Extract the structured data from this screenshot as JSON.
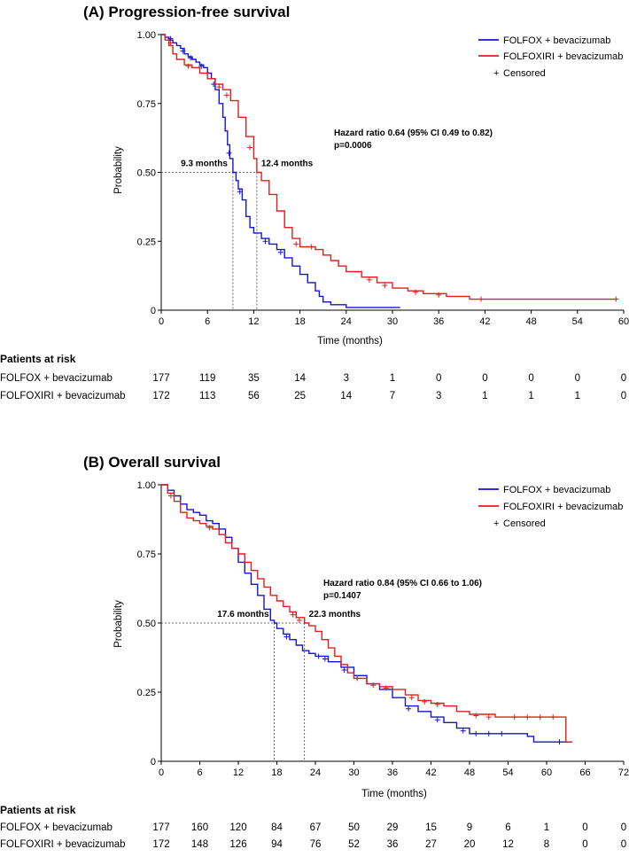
{
  "colors": {
    "folfox": "#1414d2",
    "folfoxiri": "#e01e1e",
    "axis": "#000000",
    "guide": "#444444"
  },
  "chart_data": [
    {
      "type": "line",
      "title": "(A) Progression-free survival",
      "xlabel": "Time (months)",
      "ylabel": "Probability",
      "xlim": [
        0,
        60
      ],
      "ylim": [
        0,
        1
      ],
      "xticks": [
        0,
        6,
        12,
        18,
        24,
        30,
        36,
        42,
        48,
        54,
        60
      ],
      "yticks": [
        "0",
        "0.25",
        "0.50",
        "0.75",
        "1.00"
      ],
      "legend": {
        "position": "top-right",
        "entries": [
          "FOLFOX + bevacizumab",
          "FOLFOXIRI + bevacizumab"
        ],
        "censored_label": "Censored"
      },
      "annotation": {
        "line1": "Hazard ratio 0.64 (95% CI 0.49 to 0.82)",
        "line2": "p=0.0006"
      },
      "medians": [
        {
          "label": "9.3 months",
          "x": 9.3,
          "series": "folfox"
        },
        {
          "label": "12.4 months",
          "x": 12.4,
          "series": "folfoxiri"
        }
      ],
      "series": [
        {
          "name": "FOLFOX + bevacizumab",
          "key": "folfox",
          "points": [
            [
              0,
              1
            ],
            [
              0.5,
              0.99
            ],
            [
              1,
              0.98
            ],
            [
              1.5,
              0.97
            ],
            [
              2,
              0.96
            ],
            [
              2.5,
              0.95
            ],
            [
              3,
              0.93
            ],
            [
              3.5,
              0.92
            ],
            [
              4,
              0.91
            ],
            [
              4.5,
              0.9
            ],
            [
              5,
              0.89
            ],
            [
              5.5,
              0.88
            ],
            [
              6,
              0.86
            ],
            [
              6.5,
              0.84
            ],
            [
              7,
              0.8
            ],
            [
              7.5,
              0.75
            ],
            [
              8,
              0.7
            ],
            [
              8.3,
              0.65
            ],
            [
              8.6,
              0.6
            ],
            [
              8.9,
              0.55
            ],
            [
              9.3,
              0.5
            ],
            [
              9.7,
              0.47
            ],
            [
              10,
              0.44
            ],
            [
              10.5,
              0.4
            ],
            [
              11,
              0.34
            ],
            [
              11.5,
              0.3
            ],
            [
              12,
              0.28
            ],
            [
              13,
              0.26
            ],
            [
              14,
              0.24
            ],
            [
              15,
              0.22
            ],
            [
              16,
              0.19
            ],
            [
              17,
              0.16
            ],
            [
              18,
              0.13
            ],
            [
              19,
              0.1
            ],
            [
              20,
              0.07
            ],
            [
              20.5,
              0.05
            ],
            [
              21,
              0.03
            ],
            [
              22,
              0.02
            ],
            [
              24,
              0.01
            ],
            [
              31,
              0.01
            ]
          ],
          "censor": [
            [
              1.2,
              0.985
            ],
            [
              2.8,
              0.94
            ],
            [
              3.8,
              0.915
            ],
            [
              5.2,
              0.885
            ],
            [
              6.8,
              0.82
            ],
            [
              8.8,
              0.57
            ],
            [
              10.2,
              0.43
            ],
            [
              13.5,
              0.25
            ],
            [
              15.5,
              0.21
            ]
          ]
        },
        {
          "name": "FOLFOXIRI + bevacizumab",
          "key": "folfoxiri",
          "points": [
            [
              0,
              1
            ],
            [
              0.5,
              0.98
            ],
            [
              1,
              0.96
            ],
            [
              1.5,
              0.93
            ],
            [
              2,
              0.91
            ],
            [
              3,
              0.89
            ],
            [
              4,
              0.88
            ],
            [
              5,
              0.86
            ],
            [
              6,
              0.84
            ],
            [
              7,
              0.82
            ],
            [
              8,
              0.8
            ],
            [
              9,
              0.76
            ],
            [
              10,
              0.7
            ],
            [
              11,
              0.63
            ],
            [
              12,
              0.55
            ],
            [
              12.4,
              0.5
            ],
            [
              13,
              0.47
            ],
            [
              14,
              0.42
            ],
            [
              15,
              0.36
            ],
            [
              16,
              0.3
            ],
            [
              17,
              0.26
            ],
            [
              18,
              0.23
            ],
            [
              19,
              0.23
            ],
            [
              20,
              0.22
            ],
            [
              21,
              0.2
            ],
            [
              22,
              0.18
            ],
            [
              23,
              0.16
            ],
            [
              24,
              0.14
            ],
            [
              26,
              0.12
            ],
            [
              28,
              0.1
            ],
            [
              30,
              0.08
            ],
            [
              32,
              0.07
            ],
            [
              34,
              0.06
            ],
            [
              37,
              0.05
            ],
            [
              40,
              0.04
            ],
            [
              59,
              0.04
            ]
          ],
          "censor": [
            [
              1.2,
              0.97
            ],
            [
              3.5,
              0.885
            ],
            [
              7.5,
              0.81
            ],
            [
              8.5,
              0.78
            ],
            [
              11.5,
              0.59
            ],
            [
              17.5,
              0.24
            ],
            [
              19.5,
              0.23
            ],
            [
              27,
              0.11
            ],
            [
              29,
              0.09
            ],
            [
              33,
              0.065
            ],
            [
              36,
              0.055
            ],
            [
              41.5,
              0.04
            ],
            [
              59,
              0.04
            ]
          ]
        }
      ],
      "risk_table": {
        "heading": "Patients at risk",
        "rows": [
          {
            "label": "FOLFOX + bevacizumab",
            "counts": [
              "177",
              "119",
              "35",
              "14",
              "3",
              "1",
              "0",
              "0",
              "0",
              "0",
              "0"
            ]
          },
          {
            "label": "FOLFOXIRI + bevacizumab",
            "counts": [
              "172",
              "113",
              "56",
              "25",
              "14",
              "7",
              "3",
              "1",
              "1",
              "1",
              "0"
            ]
          }
        ]
      }
    },
    {
      "type": "line",
      "title": "(B) Overall survival",
      "xlabel": "Time (months)",
      "ylabel": "Probability",
      "xlim": [
        0,
        72
      ],
      "ylim": [
        0,
        1
      ],
      "xticks": [
        0,
        6,
        12,
        18,
        24,
        30,
        36,
        42,
        48,
        54,
        60,
        66,
        72
      ],
      "yticks": [
        "0",
        "0.25",
        "0.50",
        "0.75",
        "1.00"
      ],
      "legend": {
        "position": "top-right",
        "entries": [
          "FOLFOX + bevacizumab",
          "FOLFOXIRI + bevacizumab"
        ],
        "censored_label": "Censored"
      },
      "annotation": {
        "line1": "Hazard ratio 0.84 (95% CI 0.66 to 1.06)",
        "line2": "p=0.1407"
      },
      "medians": [
        {
          "label": "17.6 months",
          "x": 17.6,
          "series": "folfox"
        },
        {
          "label": "22.3 months",
          "x": 22.3,
          "series": "folfoxiri"
        }
      ],
      "series": [
        {
          "name": "FOLFOX + bevacizumab",
          "key": "folfox",
          "points": [
            [
              0,
              1
            ],
            [
              1,
              0.98
            ],
            [
              2,
              0.96
            ],
            [
              3,
              0.93
            ],
            [
              4,
              0.91
            ],
            [
              5,
              0.9
            ],
            [
              6,
              0.89
            ],
            [
              7,
              0.87
            ],
            [
              8,
              0.86
            ],
            [
              9,
              0.84
            ],
            [
              10,
              0.81
            ],
            [
              11,
              0.77
            ],
            [
              12,
              0.72
            ],
            [
              13,
              0.68
            ],
            [
              14,
              0.64
            ],
            [
              15,
              0.6
            ],
            [
              16,
              0.55
            ],
            [
              17,
              0.51
            ],
            [
              17.6,
              0.5
            ],
            [
              18,
              0.48
            ],
            [
              19,
              0.46
            ],
            [
              20,
              0.44
            ],
            [
              21,
              0.42
            ],
            [
              22,
              0.4
            ],
            [
              23,
              0.39
            ],
            [
              24,
              0.38
            ],
            [
              26,
              0.36
            ],
            [
              28,
              0.34
            ],
            [
              30,
              0.31
            ],
            [
              32,
              0.28
            ],
            [
              34,
              0.26
            ],
            [
              36,
              0.23
            ],
            [
              38,
              0.2
            ],
            [
              40,
              0.18
            ],
            [
              42,
              0.16
            ],
            [
              44,
              0.14
            ],
            [
              46,
              0.12
            ],
            [
              48,
              0.1
            ],
            [
              54,
              0.1
            ],
            [
              57,
              0.09
            ],
            [
              58,
              0.07
            ],
            [
              64,
              0.07
            ]
          ],
          "censor": [
            [
              19.5,
              0.45
            ],
            [
              24.5,
              0.38
            ],
            [
              25.5,
              0.37
            ],
            [
              28.5,
              0.33
            ],
            [
              30.5,
              0.3
            ],
            [
              38.5,
              0.19
            ],
            [
              43,
              0.15
            ],
            [
              47,
              0.11
            ],
            [
              49,
              0.1
            ],
            [
              51,
              0.1
            ],
            [
              53,
              0.1
            ],
            [
              62,
              0.07
            ]
          ]
        },
        {
          "name": "FOLFOXIRI + bevacizumab",
          "key": "folfoxiri",
          "points": [
            [
              0,
              1
            ],
            [
              1,
              0.97
            ],
            [
              2,
              0.94
            ],
            [
              3,
              0.9
            ],
            [
              4,
              0.88
            ],
            [
              5,
              0.87
            ],
            [
              6,
              0.86
            ],
            [
              7,
              0.85
            ],
            [
              8,
              0.84
            ],
            [
              9,
              0.82
            ],
            [
              10,
              0.79
            ],
            [
              11,
              0.77
            ],
            [
              12,
              0.75
            ],
            [
              13,
              0.72
            ],
            [
              14,
              0.69
            ],
            [
              15,
              0.66
            ],
            [
              16,
              0.63
            ],
            [
              17,
              0.6
            ],
            [
              18,
              0.58
            ],
            [
              19,
              0.56
            ],
            [
              20,
              0.54
            ],
            [
              21,
              0.52
            ],
            [
              22.3,
              0.5
            ],
            [
              23,
              0.49
            ],
            [
              24,
              0.47
            ],
            [
              25,
              0.44
            ],
            [
              26,
              0.41
            ],
            [
              27,
              0.38
            ],
            [
              28,
              0.35
            ],
            [
              29,
              0.32
            ],
            [
              30,
              0.3
            ],
            [
              32,
              0.28
            ],
            [
              34,
              0.27
            ],
            [
              36,
              0.26
            ],
            [
              38,
              0.24
            ],
            [
              40,
              0.22
            ],
            [
              42,
              0.21
            ],
            [
              44,
              0.2
            ],
            [
              46,
              0.18
            ],
            [
              48,
              0.17
            ],
            [
              52,
              0.16
            ],
            [
              62,
              0.16
            ],
            [
              63,
              0.07
            ],
            [
              64,
              0.07
            ]
          ],
          "censor": [
            [
              1.5,
              0.96
            ],
            [
              7.5,
              0.845
            ],
            [
              20.5,
              0.53
            ],
            [
              21.5,
              0.51
            ],
            [
              33,
              0.275
            ],
            [
              35,
              0.265
            ],
            [
              39,
              0.23
            ],
            [
              41,
              0.215
            ],
            [
              43,
              0.205
            ],
            [
              49,
              0.165
            ],
            [
              51,
              0.16
            ],
            [
              55,
              0.16
            ],
            [
              57,
              0.16
            ],
            [
              59,
              0.16
            ],
            [
              61,
              0.16
            ]
          ]
        }
      ],
      "risk_table": {
        "heading": "Patients at risk",
        "rows": [
          {
            "label": "FOLFOX + bevacizumab",
            "counts": [
              "177",
              "160",
              "120",
              "84",
              "67",
              "50",
              "29",
              "15",
              "9",
              "6",
              "1",
              "0",
              "0"
            ]
          },
          {
            "label": "FOLFOXIRI + bevacizumab",
            "counts": [
              "172",
              "148",
              "126",
              "94",
              "76",
              "52",
              "36",
              "27",
              "20",
              "12",
              "8",
              "0",
              "0"
            ]
          }
        ]
      }
    }
  ]
}
